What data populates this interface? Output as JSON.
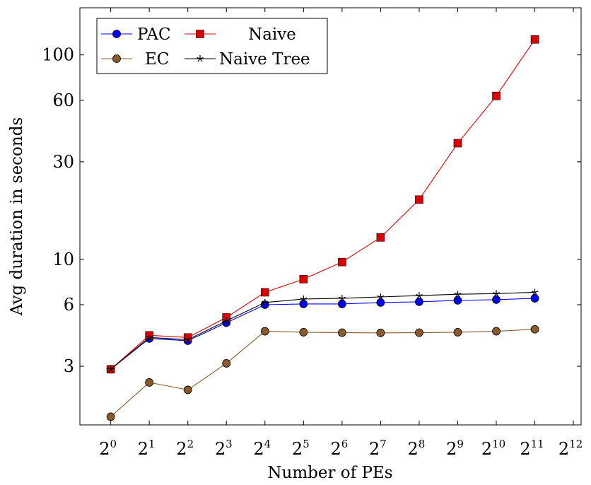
{
  "chart_data": {
    "type": "line",
    "x_tick_base": "2",
    "x_tick_exponents": [
      "0",
      "1",
      "2",
      "3",
      "4",
      "5",
      "6",
      "7",
      "8",
      "9",
      "10",
      "11",
      "12"
    ],
    "x": [
      0,
      1,
      2,
      3,
      4,
      5,
      6,
      7,
      8,
      9,
      10,
      11
    ],
    "xlabel": "Number of PEs",
    "ylabel": "Avg duration in seconds",
    "y_scale": "log",
    "y_ticks": [
      3,
      6,
      10,
      30,
      60,
      100
    ],
    "xlim": [
      -0.8,
      12.2
    ],
    "ylim": [
      1.55,
      170
    ],
    "grid": false,
    "legend_position": "top-left",
    "series": [
      {
        "name": "PAC",
        "color": "#0000ee",
        "marker": "circle",
        "values": [
          2.9,
          4.1,
          4.0,
          4.9,
          6.0,
          6.05,
          6.05,
          6.15,
          6.2,
          6.3,
          6.35,
          6.45
        ]
      },
      {
        "name": "Naive",
        "color": "#dd0000",
        "marker": "square",
        "values": [
          2.9,
          4.25,
          4.15,
          5.2,
          6.9,
          8.0,
          9.7,
          12.8,
          19.6,
          37.0,
          63.0,
          119.0
        ]
      },
      {
        "name": "EC",
        "color": "#8b5a2b",
        "marker": "circle",
        "values": [
          1.7,
          2.5,
          2.3,
          3.1,
          4.45,
          4.4,
          4.38,
          4.37,
          4.38,
          4.4,
          4.45,
          4.55
        ]
      },
      {
        "name": "Naive Tree",
        "color": "#000000",
        "marker": "star",
        "values": [
          2.9,
          4.15,
          4.05,
          5.0,
          6.15,
          6.4,
          6.45,
          6.55,
          6.65,
          6.75,
          6.8,
          6.9
        ]
      }
    ]
  }
}
